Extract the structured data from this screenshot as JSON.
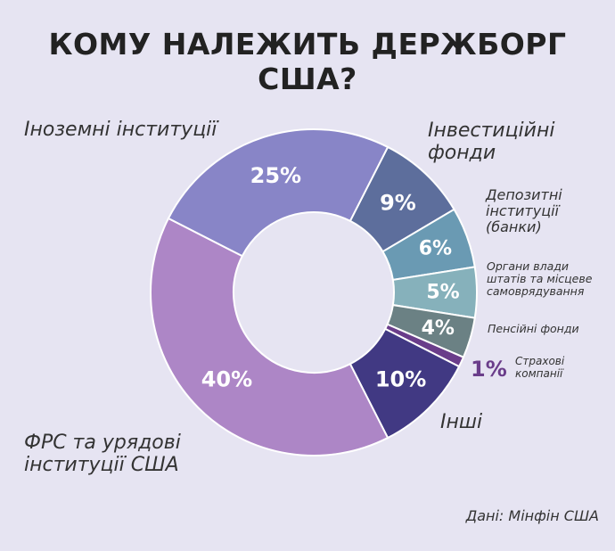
{
  "title": "КОМУ НАЛЕЖИТЬ ДЕРЖБОРГ США?",
  "source": "Дані: Мінфін США",
  "chart_data": {
    "type": "pie",
    "title": "КОМУ НАЛЕЖИТЬ ДЕРЖБОРГ США?",
    "slices": [
      {
        "label": "Інвестиційні фонди",
        "value": 9,
        "display": "9%",
        "color": "#5d6e9c"
      },
      {
        "label": "Депозитні інституції (банки)",
        "value": 6,
        "display": "6%",
        "color": "#6a9ab3"
      },
      {
        "label": "Органи влади штатів та місцеве самоврядування",
        "value": 5,
        "display": "5%",
        "color": "#86b1bb"
      },
      {
        "label": "Пенсійні фонди",
        "value": 4,
        "display": "4%",
        "color": "#6b8184"
      },
      {
        "label": "Страхові компанії",
        "value": 1,
        "display": "1%",
        "color": "#6a3d8a"
      },
      {
        "label": "Інші",
        "value": 10,
        "display": "10%",
        "color": "#413983"
      },
      {
        "label": "ФРС та урядові інституції США",
        "value": 40,
        "display": "40%",
        "color": "#ad86c6"
      },
      {
        "label": "Іноземні інституції",
        "value": 25,
        "display": "25%",
        "color": "#8885c7"
      }
    ]
  },
  "labels": {
    "foreign": "Іноземні інституції",
    "funds_1": "Інвестиційні",
    "funds_2": "фонди",
    "deposit_1": "Депозитні",
    "deposit_2": "інституції",
    "deposit_3": "(банки)",
    "states_1": "Органи влади",
    "states_2": "штатів та місцеве",
    "states_3": "самоврядування",
    "pension": "Пенсійні фонди",
    "insurance_pct": "1%",
    "insurance_1": "Страхові",
    "insurance_2": "компанії",
    "other": "Інші",
    "fed_1": "ФРС та урядові",
    "fed_2": "інституції США"
  }
}
